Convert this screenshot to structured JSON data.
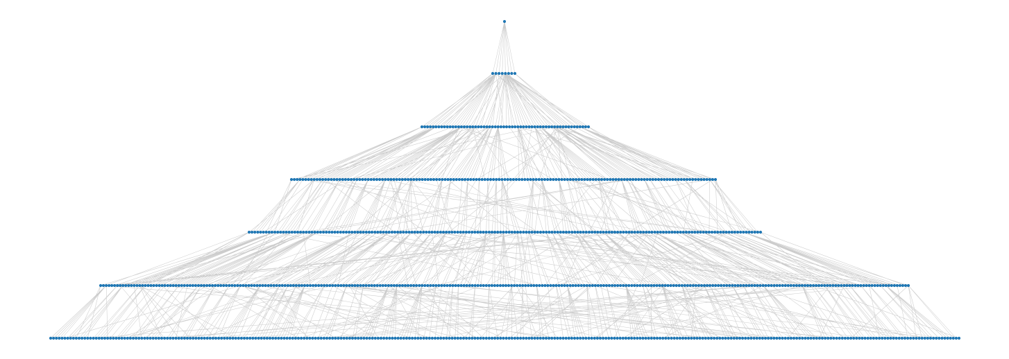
{
  "diagram": {
    "type": "layered-tree",
    "levels": 7,
    "node_color": "#1f77b4",
    "edge_color": "#cccccc",
    "background_color": "#ffffff",
    "nodes_per_level": [
      1,
      8,
      60,
      150,
      180,
      290,
      320
    ]
  }
}
